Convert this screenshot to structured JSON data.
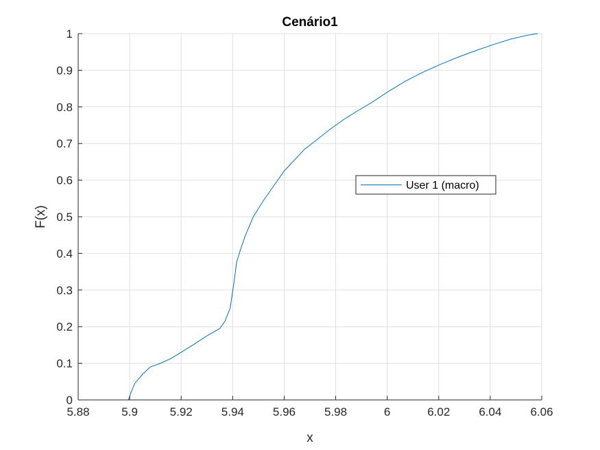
{
  "chart_data": {
    "type": "line",
    "title": "Cenário1",
    "xlabel": "x",
    "ylabel": "F(x)",
    "xlim": [
      5.88,
      6.06
    ],
    "ylim": [
      0,
      1
    ],
    "xticks": [
      5.88,
      5.9,
      5.92,
      5.94,
      5.96,
      5.98,
      6,
      6.02,
      6.04,
      6.06
    ],
    "xtick_labels": [
      "5.88",
      "5.9",
      "5.92",
      "5.94",
      "5.96",
      "5.98",
      "6",
      "6.02",
      "6.04",
      "6.06"
    ],
    "yticks": [
      0,
      0.1,
      0.2,
      0.3,
      0.4,
      0.5,
      0.6,
      0.7,
      0.8,
      0.9,
      1
    ],
    "ytick_labels": [
      "0",
      "0.1",
      "0.2",
      "0.3",
      "0.4",
      "0.5",
      "0.6",
      "0.7",
      "0.8",
      "0.9",
      "1"
    ],
    "grid": true,
    "legend_position": "center-right",
    "series": [
      {
        "name": "User 1 (macro)",
        "color": "#0072BD",
        "x": [
          5.8995,
          5.9005,
          5.902,
          5.905,
          5.908,
          5.912,
          5.916,
          5.92,
          5.925,
          5.93,
          5.935,
          5.937,
          5.939,
          5.9405,
          5.9415,
          5.943,
          5.945,
          5.948,
          5.952,
          5.956,
          5.96,
          5.964,
          5.968,
          5.973,
          5.978,
          5.983,
          5.988,
          5.994,
          6.0,
          6.007,
          6.014,
          6.021,
          6.028,
          6.035,
          6.042,
          6.048,
          6.054,
          6.0585
        ],
        "y": [
          0.0,
          0.02,
          0.045,
          0.07,
          0.09,
          0.1,
          0.113,
          0.13,
          0.152,
          0.175,
          0.195,
          0.215,
          0.25,
          0.32,
          0.375,
          0.41,
          0.45,
          0.5,
          0.545,
          0.585,
          0.625,
          0.655,
          0.685,
          0.712,
          0.74,
          0.765,
          0.787,
          0.812,
          0.84,
          0.87,
          0.895,
          0.917,
          0.937,
          0.955,
          0.972,
          0.985,
          0.995,
          1.0
        ]
      }
    ]
  }
}
